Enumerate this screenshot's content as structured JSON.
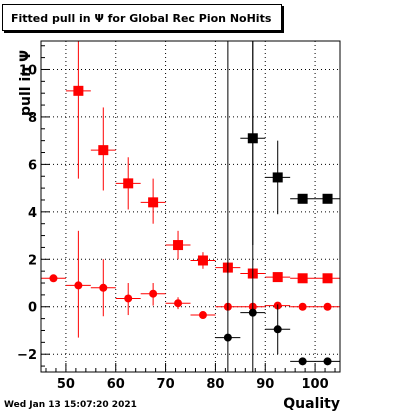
{
  "title": "Fitted pull in  Ψ  for Global Rec Pion NoHits",
  "footer": "Wed Jan 13 15:07:20 2021",
  "chart_data": {
    "type": "scatter",
    "title": "Fitted pull in  Ψ  for Global Rec Pion NoHits",
    "xlabel": "Quality",
    "ylabel": "pull in  Ψ",
    "xlim": [
      45,
      105
    ],
    "ylim": [
      -2.75,
      11.2
    ],
    "x_ticks": [
      50,
      60,
      70,
      80,
      90,
      100
    ],
    "y_ticks": [
      -2,
      0,
      2,
      4,
      6,
      8,
      10
    ],
    "grid": true,
    "series": [
      {
        "marker": "square",
        "color": "#ff0000",
        "points": [
          {
            "x": 52.5,
            "y": 9.1,
            "xerr": 2.5,
            "ylo": 5.4,
            "yhi": 11.2
          },
          {
            "x": 57.5,
            "y": 6.6,
            "xerr": 2.5,
            "ylo": 4.9,
            "yhi": 8.4
          },
          {
            "x": 62.5,
            "y": 5.2,
            "xerr": 2.5,
            "ylo": 4.1,
            "yhi": 6.3
          },
          {
            "x": 67.5,
            "y": 4.4,
            "xerr": 2.5,
            "ylo": 3.5,
            "yhi": 5.4
          },
          {
            "x": 72.5,
            "y": 2.6,
            "xerr": 2.5,
            "ylo": 2.0,
            "yhi": 3.2
          },
          {
            "x": 77.5,
            "y": 1.95,
            "xerr": 2.5,
            "ylo": 1.6,
            "yhi": 2.3
          },
          {
            "x": 82.5,
            "y": 1.65,
            "xerr": 2.5,
            "ylo": 1.4,
            "yhi": 1.9
          },
          {
            "x": 87.5,
            "y": 1.4,
            "xerr": 2.5,
            "ylo": 1.25,
            "yhi": 1.6
          },
          {
            "x": 92.5,
            "y": 1.25,
            "xerr": 2.5,
            "ylo": 1.15,
            "yhi": 1.35
          },
          {
            "x": 97.5,
            "y": 1.2,
            "xerr": 2.5,
            "ylo": 1.15,
            "yhi": 1.25
          },
          {
            "x": 102.5,
            "y": 1.2,
            "xerr": 2.5,
            "ylo": 1.15,
            "yhi": 1.25
          }
        ]
      },
      {
        "marker": "circle",
        "color": "#ff0000",
        "points": [
          {
            "x": 47.5,
            "y": 1.2,
            "xerr": 2.5,
            "ylo": 1.2,
            "yhi": 1.2
          },
          {
            "x": 52.5,
            "y": 0.9,
            "xerr": 2.5,
            "ylo": -1.3,
            "yhi": 3.2
          },
          {
            "x": 57.5,
            "y": 0.8,
            "xerr": 2.5,
            "ylo": -0.4,
            "yhi": 2.0
          },
          {
            "x": 62.5,
            "y": 0.35,
            "xerr": 2.5,
            "ylo": -0.35,
            "yhi": 1.0
          },
          {
            "x": 67.5,
            "y": 0.55,
            "xerr": 2.5,
            "ylo": 0.05,
            "yhi": 1.0
          },
          {
            "x": 72.5,
            "y": 0.15,
            "xerr": 2.5,
            "ylo": -0.1,
            "yhi": 0.4
          },
          {
            "x": 77.5,
            "y": -0.35,
            "xerr": 2.5,
            "ylo": -0.5,
            "yhi": -0.2
          },
          {
            "x": 82.5,
            "y": 0.0,
            "xerr": 2.5,
            "ylo": -0.1,
            "yhi": 0.1
          },
          {
            "x": 87.5,
            "y": 0.0,
            "xerr": 2.5,
            "ylo": -0.1,
            "yhi": 0.1
          },
          {
            "x": 92.5,
            "y": 0.05,
            "xerr": 2.5,
            "ylo": 0.0,
            "yhi": 0.1
          },
          {
            "x": 97.5,
            "y": 0.0,
            "xerr": 2.5,
            "ylo": -0.05,
            "yhi": 0.05
          },
          {
            "x": 102.5,
            "y": 0.0,
            "xerr": 2.5,
            "ylo": -0.05,
            "yhi": 0.05
          }
        ]
      },
      {
        "marker": "square",
        "color": "#000000",
        "points": [
          {
            "x": 87.5,
            "y": 7.1,
            "xerr": 2.5,
            "ylo": 2.6,
            "yhi": 11.2
          },
          {
            "x": 92.5,
            "y": 5.45,
            "xerr": 2.5,
            "ylo": 3.9,
            "yhi": 7.0
          },
          {
            "x": 97.5,
            "y": 4.55,
            "xerr": 2.5,
            "ylo": 4.55,
            "yhi": 4.55
          },
          {
            "x": 102.5,
            "y": 4.55,
            "xerr": 2.5,
            "ylo": 4.55,
            "yhi": 4.55
          }
        ]
      },
      {
        "marker": "circle",
        "color": "#000000",
        "points": [
          {
            "x": 82.5,
            "y": -1.3,
            "xerr": 2.5,
            "ylo": -2.75,
            "yhi": 11.2
          },
          {
            "x": 87.5,
            "y": -0.25,
            "xerr": 2.5,
            "ylo": -2.75,
            "yhi": 11.2
          },
          {
            "x": 92.5,
            "y": -0.95,
            "xerr": 2.5,
            "ylo": -2.0,
            "yhi": 0.1
          },
          {
            "x": 97.5,
            "y": -2.3,
            "xerr": 2.5,
            "ylo": -2.3,
            "yhi": -2.3
          },
          {
            "x": 102.5,
            "y": -2.3,
            "xerr": 2.5,
            "ylo": -2.3,
            "yhi": -2.3
          }
        ]
      }
    ]
  }
}
